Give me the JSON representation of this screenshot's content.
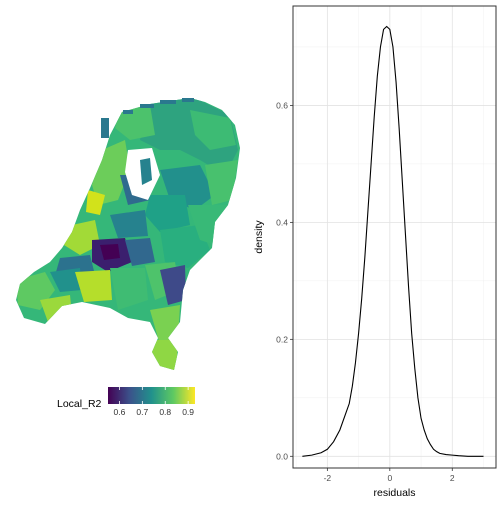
{
  "map": {
    "legend_title": "Local_R2",
    "legend_ticks": [
      "0.6",
      "0.7",
      "0.8",
      "0.9"
    ],
    "legend_tick_values": [
      0.6,
      0.7,
      0.8,
      0.9
    ],
    "legend_range": [
      0.55,
      0.93
    ],
    "colormap": [
      "#440154",
      "#3b528b",
      "#21918c",
      "#5ec962",
      "#fde725"
    ]
  },
  "chart_data": {
    "type": "line",
    "title": "",
    "xlabel": "residuals",
    "ylabel": "density",
    "xlim": [
      -3.1,
      3.4
    ],
    "ylim": [
      -0.02,
      0.77
    ],
    "x_ticks": [
      -2,
      0,
      2
    ],
    "x_tick_labels": [
      "-2",
      "0",
      "2"
    ],
    "y_ticks": [
      0.0,
      0.2,
      0.4,
      0.6
    ],
    "y_tick_labels": [
      "0.0",
      "0.2",
      "0.4",
      "0.6"
    ],
    "grid": true,
    "line_color": "#000000",
    "series": [
      {
        "x": [
          -2.8,
          -2.5,
          -2.2,
          -2.0,
          -1.8,
          -1.6,
          -1.4,
          -1.3,
          -1.2,
          -1.1,
          -1.0,
          -0.9,
          -0.8,
          -0.7,
          -0.6,
          -0.5,
          -0.4,
          -0.3,
          -0.2,
          -0.1,
          0.0,
          0.1,
          0.2,
          0.3,
          0.4,
          0.5,
          0.6,
          0.7,
          0.8,
          0.9,
          1.0,
          1.1,
          1.2,
          1.3,
          1.4,
          1.5,
          1.6,
          1.8,
          2.0,
          2.2,
          2.5,
          3.0
        ],
        "y": [
          0.0,
          0.002,
          0.006,
          0.012,
          0.025,
          0.045,
          0.075,
          0.09,
          0.12,
          0.16,
          0.21,
          0.27,
          0.34,
          0.42,
          0.5,
          0.58,
          0.65,
          0.7,
          0.73,
          0.735,
          0.73,
          0.7,
          0.64,
          0.56,
          0.47,
          0.38,
          0.29,
          0.21,
          0.15,
          0.1,
          0.065,
          0.045,
          0.03,
          0.02,
          0.012,
          0.008,
          0.005,
          0.003,
          0.002,
          0.001,
          0.0,
          0.0
        ]
      }
    ]
  }
}
